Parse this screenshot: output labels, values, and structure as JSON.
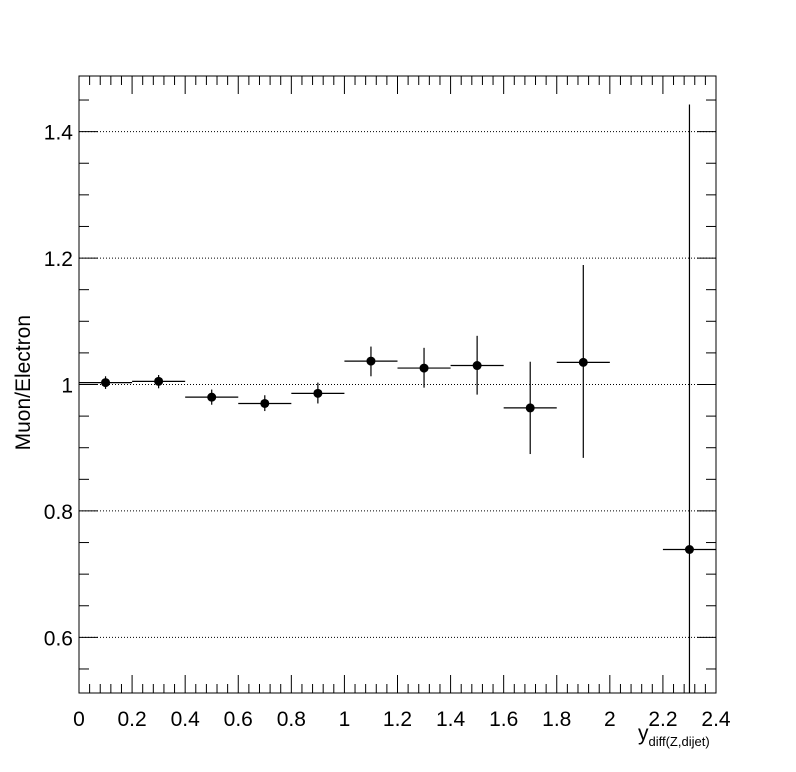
{
  "chart_data": {
    "type": "scatter",
    "title": "",
    "xlabel": "y",
    "xlabel_sub": "diff(Z,dijet)",
    "ylabel": "Muon/Electron",
    "xlim": [
      0,
      2.4
    ],
    "ylim": [
      0.512,
      1.488
    ],
    "grid": {
      "horizontal": true,
      "vertical": false
    },
    "legend": "none",
    "x_ticks": [
      {
        "value": 0,
        "label": "0"
      },
      {
        "value": 0.2,
        "label": "0.2"
      },
      {
        "value": 0.4,
        "label": "0.4"
      },
      {
        "value": 0.6,
        "label": "0.6"
      },
      {
        "value": 0.8,
        "label": "0.8"
      },
      {
        "value": 1.0,
        "label": "1"
      },
      {
        "value": 1.2,
        "label": "1.2"
      },
      {
        "value": 1.4,
        "label": "1.4"
      },
      {
        "value": 1.6,
        "label": "1.6"
      },
      {
        "value": 1.8,
        "label": "1.8"
      },
      {
        "value": 2.0,
        "label": "2"
      },
      {
        "value": 2.2,
        "label": "2.2"
      },
      {
        "value": 2.4,
        "label": "2.4"
      }
    ],
    "y_ticks": [
      {
        "value": 0.6,
        "label": "0.6"
      },
      {
        "value": 0.8,
        "label": "0.8"
      },
      {
        "value": 1.0,
        "label": "1"
      },
      {
        "value": 1.2,
        "label": "1.2"
      },
      {
        "value": 1.4,
        "label": "1.4"
      }
    ],
    "points": [
      {
        "x": 0.1,
        "x_lo": 0.0,
        "x_hi": 0.2,
        "y": 1.003,
        "y_lo": 0.993,
        "y_hi": 1.013
      },
      {
        "x": 0.3,
        "x_lo": 0.2,
        "x_hi": 0.4,
        "y": 1.005,
        "y_lo": 0.994,
        "y_hi": 1.015
      },
      {
        "x": 0.5,
        "x_lo": 0.4,
        "x_hi": 0.6,
        "y": 0.98,
        "y_lo": 0.968,
        "y_hi": 0.992
      },
      {
        "x": 0.7,
        "x_lo": 0.6,
        "x_hi": 0.8,
        "y": 0.97,
        "y_lo": 0.958,
        "y_hi": 0.983
      },
      {
        "x": 0.9,
        "x_lo": 0.8,
        "x_hi": 1.0,
        "y": 0.986,
        "y_lo": 0.97,
        "y_hi": 1.003
      },
      {
        "x": 1.1,
        "x_lo": 1.0,
        "x_hi": 1.2,
        "y": 1.037,
        "y_lo": 1.013,
        "y_hi": 1.06
      },
      {
        "x": 1.3,
        "x_lo": 1.2,
        "x_hi": 1.4,
        "y": 1.026,
        "y_lo": 0.995,
        "y_hi": 1.058
      },
      {
        "x": 1.5,
        "x_lo": 1.4,
        "x_hi": 1.6,
        "y": 1.03,
        "y_lo": 0.984,
        "y_hi": 1.077
      },
      {
        "x": 1.7,
        "x_lo": 1.6,
        "x_hi": 1.8,
        "y": 0.963,
        "y_lo": 0.89,
        "y_hi": 1.036
      },
      {
        "x": 1.9,
        "x_lo": 1.8,
        "x_hi": 2.0,
        "y": 1.035,
        "y_lo": 0.884,
        "y_hi": 1.189
      },
      {
        "x": 2.3,
        "x_lo": 2.2,
        "x_hi": 2.4,
        "y": 0.739,
        "y_lo": 0.512,
        "y_hi": 1.443
      }
    ],
    "marker_color": "#000000"
  }
}
